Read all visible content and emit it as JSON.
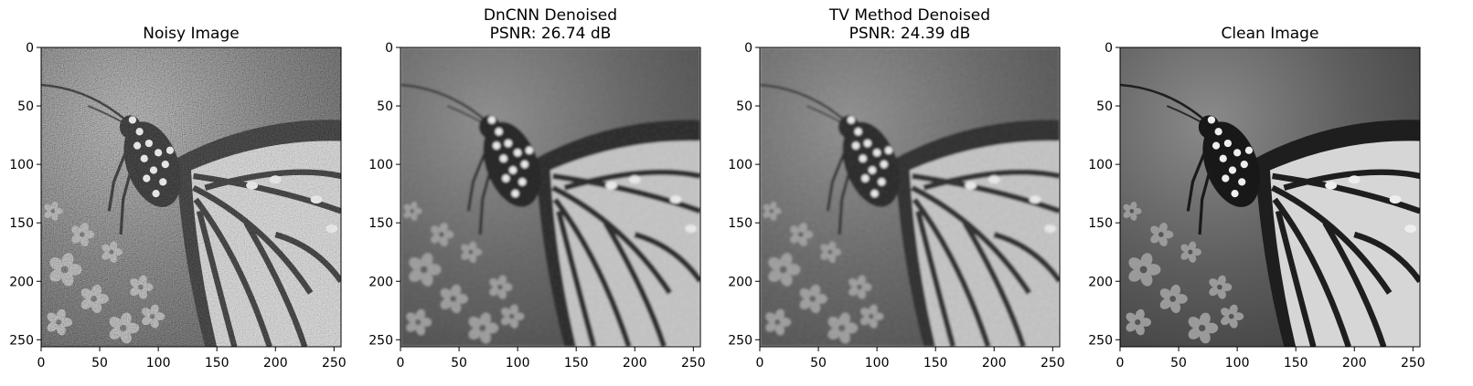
{
  "figure": {
    "panels": [
      {
        "id": "noisy",
        "title_lines": [
          "Noisy Image"
        ],
        "variant": "noisy"
      },
      {
        "id": "dncnn",
        "title_lines": [
          "DnCNN Denoised",
          "PSNR: 26.74 dB"
        ],
        "variant": "dncnn"
      },
      {
        "id": "tv",
        "title_lines": [
          "TV Method Denoised",
          "PSNR: 24.39 dB"
        ],
        "variant": "tv"
      },
      {
        "id": "clean",
        "title_lines": [
          "Clean Image"
        ],
        "variant": "clean"
      }
    ],
    "axes": {
      "xlim": [
        0,
        256
      ],
      "ylim": [
        256,
        0
      ],
      "x_ticks": [
        0,
        50,
        100,
        150,
        200,
        250
      ],
      "y_ticks": [
        0,
        50,
        100,
        150,
        200,
        250
      ],
      "x_tick_labels": [
        "0",
        "50",
        "100",
        "150",
        "200",
        "250"
      ],
      "y_tick_labels": [
        "0",
        "50",
        "100",
        "150",
        "200",
        "250"
      ]
    },
    "colormap": "gray"
  }
}
